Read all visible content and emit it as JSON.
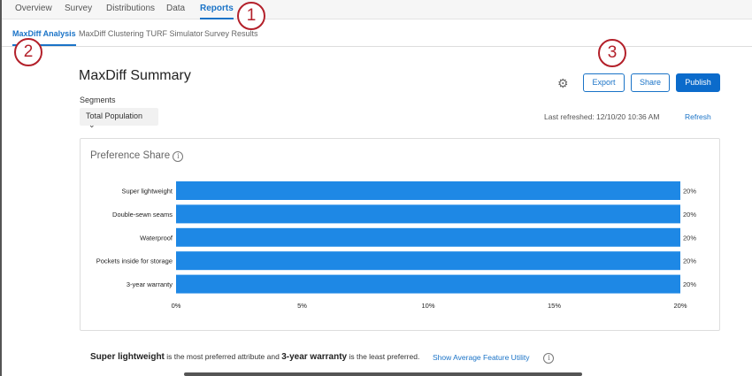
{
  "topnav": {
    "items": [
      "Overview",
      "Survey",
      "Distributions",
      "Data",
      "Reports"
    ],
    "active": "Reports"
  },
  "subnav": {
    "items": [
      "MaxDiff Analysis",
      "MaxDiff Clustering",
      "TURF Simulator",
      "Survey Results"
    ],
    "active": "MaxDiff Analysis"
  },
  "callouts": [
    "1",
    "2",
    "3"
  ],
  "header": {
    "title": "MaxDiff Summary",
    "export": "Export",
    "share": "Share",
    "publish": "Publish",
    "gear_icon": "gear-icon"
  },
  "segments": {
    "label": "Segments",
    "selected": "Total Population"
  },
  "refresh": {
    "last": "Last refreshed: 12/10/20 10:36 AM",
    "link": "Refresh"
  },
  "colors": {
    "accent": "#1a73c7",
    "bar": "#1e88e5",
    "callout": "#b3202a"
  },
  "chart_data": {
    "type": "bar",
    "orientation": "horizontal",
    "title": "Preference Share",
    "categories": [
      "Super lightweight",
      "Double-sewn seams",
      "Waterproof",
      "Pockets inside for storage",
      "3-year warranty"
    ],
    "values": [
      20,
      20,
      20,
      20,
      20
    ],
    "data_labels": [
      "20%",
      "20%",
      "20%",
      "20%",
      "20%"
    ],
    "xlim": [
      0,
      20
    ],
    "xticks": [
      "0%",
      "5%",
      "10%",
      "15%",
      "20%"
    ],
    "grid": false
  },
  "summary": {
    "most": "Super lightweight",
    "mid": " is the most preferred attribute and ",
    "least": "3-year warranty",
    "end": " is the least preferred.",
    "link": "Show Average Feature Utility"
  }
}
